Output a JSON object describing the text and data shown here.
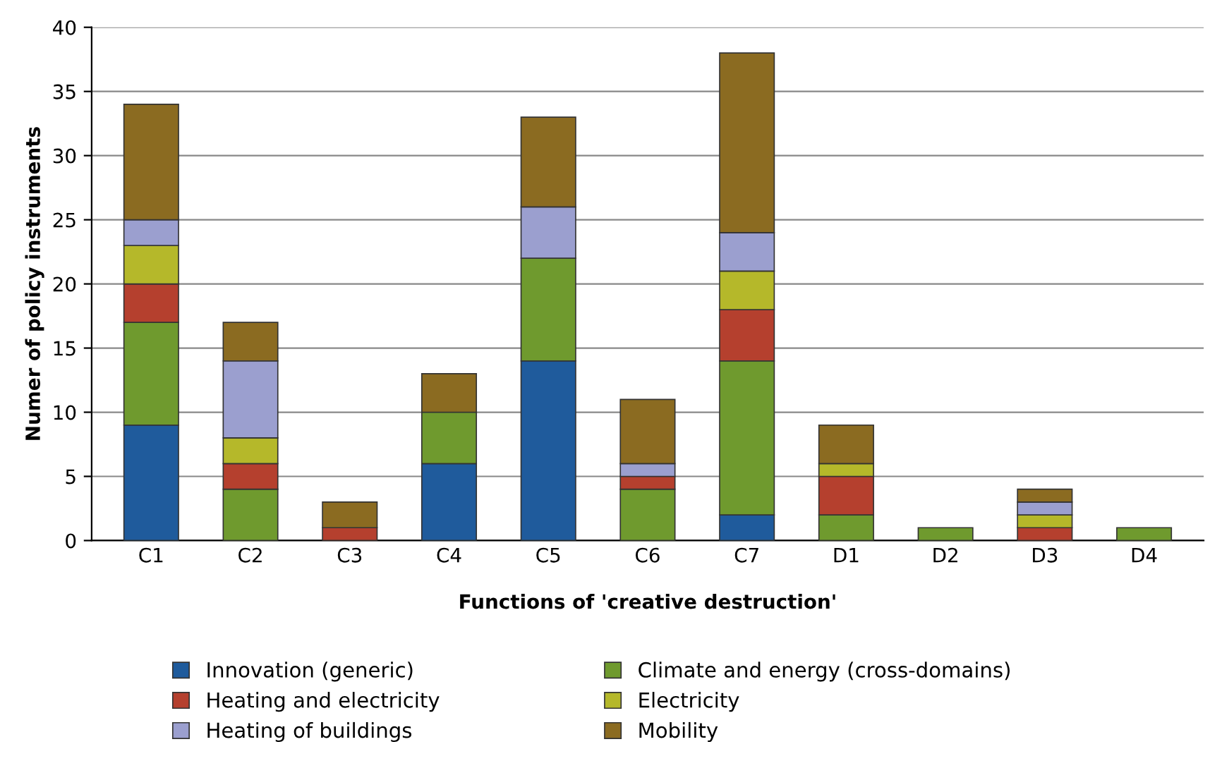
{
  "chart_data": {
    "type": "bar",
    "stacked": true,
    "xlabel": "Functions of 'creative destruction'",
    "ylabel": "Numer of policy instruments",
    "categories": [
      "C1",
      "C2",
      "C3",
      "C4",
      "C5",
      "C6",
      "C7",
      "D1",
      "D2",
      "D3",
      "D4"
    ],
    "series": [
      {
        "name": "Innovation (generic)",
        "color": "#1f5b9c",
        "values": [
          9,
          null,
          null,
          6,
          14,
          null,
          2,
          null,
          null,
          null,
          null
        ]
      },
      {
        "name": "Climate and energy (cross-domains)",
        "color": "#6f9a2e",
        "values": [
          8,
          4,
          null,
          4,
          8,
          4,
          12,
          2,
          1,
          null,
          1
        ]
      },
      {
        "name": "Heating and electricity",
        "color": "#b5402e",
        "values": [
          3,
          2,
          1,
          null,
          null,
          1,
          4,
          3,
          null,
          1,
          null
        ]
      },
      {
        "name": "Electricity",
        "color": "#b5b82a",
        "values": [
          3,
          2,
          null,
          null,
          null,
          null,
          3,
          1,
          null,
          1,
          null
        ]
      },
      {
        "name": "Heating of buildings",
        "color": "#9b9fcf",
        "values": [
          2,
          6,
          null,
          null,
          4,
          1,
          3,
          null,
          null,
          1,
          null
        ]
      },
      {
        "name": "Mobility",
        "color": "#8b6b21",
        "values": [
          9,
          3,
          2,
          3,
          7,
          5,
          14,
          3,
          null,
          1,
          null
        ]
      }
    ],
    "ylim": [
      0,
      40
    ],
    "yticks": [
      0,
      5,
      10,
      15,
      20,
      25,
      30,
      35,
      40
    ],
    "grid": "y",
    "legend": "bottom"
  }
}
